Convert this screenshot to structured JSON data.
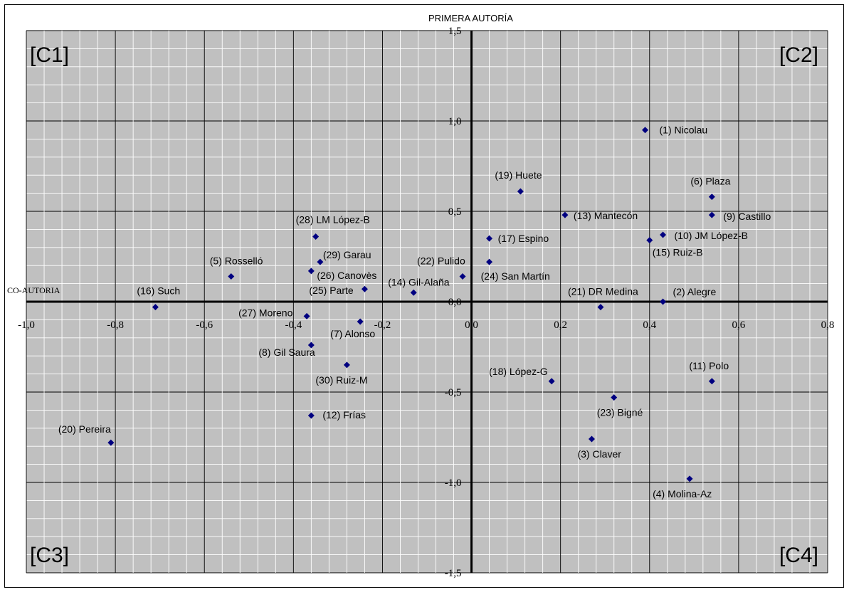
{
  "chart_data": {
    "type": "scatter",
    "title": "",
    "xlabel": "CO-AUTORIA",
    "ylabel": "PRIMERA AUTORÍA",
    "xlim": [
      -1.0,
      0.8
    ],
    "ylim": [
      -1.5,
      1.5
    ],
    "grid": true,
    "x_ticks": [
      "-1,0",
      "-0,8",
      "-0,6",
      "-0,4",
      "-0,2",
      "0,0",
      "0,2",
      "0,4",
      "0,6",
      "0,8"
    ],
    "y_ticks": [
      "1,5",
      "1,0",
      "0,5",
      "0,0",
      "-0,5",
      "-1,0",
      "-1,5"
    ],
    "quadrants": [
      "[C1]",
      "[C2]",
      "[C3]",
      "[C4]"
    ],
    "marker_color": "#000080",
    "points": [
      {
        "label": "(1) Nicolau",
        "x": 0.39,
        "y": 0.95
      },
      {
        "label": "(2) Alegre",
        "x": 0.43,
        "y": 0.0
      },
      {
        "label": "(3) Claver",
        "x": 0.27,
        "y": -0.76
      },
      {
        "label": "(4) Molina-Az",
        "x": 0.49,
        "y": -0.98
      },
      {
        "label": "(5) Rosselló",
        "x": -0.54,
        "y": 0.14
      },
      {
        "label": "(6) Plaza",
        "x": 0.54,
        "y": 0.58
      },
      {
        "label": "(7) Alonso",
        "x": -0.25,
        "y": -0.11
      },
      {
        "label": "(8) Gil Saura",
        "x": -0.36,
        "y": -0.24
      },
      {
        "label": "(9) Castillo",
        "x": 0.54,
        "y": 0.48
      },
      {
        "label": "(10) JM López-B",
        "x": 0.43,
        "y": 0.37
      },
      {
        "label": "(11) Polo",
        "x": 0.54,
        "y": -0.44
      },
      {
        "label": "(12) Frías",
        "x": -0.36,
        "y": -0.63
      },
      {
        "label": "(13) Mantecón",
        "x": 0.21,
        "y": 0.48
      },
      {
        "label": "(14) Gil-Alaña",
        "x": -0.13,
        "y": 0.05
      },
      {
        "label": "(15) Ruiz-B",
        "x": 0.4,
        "y": 0.34
      },
      {
        "label": "(16) Such",
        "x": -0.71,
        "y": -0.03
      },
      {
        "label": "(17) Espino",
        "x": 0.04,
        "y": 0.35
      },
      {
        "label": "(18) López-G",
        "x": 0.18,
        "y": -0.44
      },
      {
        "label": "(19) Huete",
        "x": 0.11,
        "y": 0.61
      },
      {
        "label": "(20) Pereira",
        "x": -0.81,
        "y": -0.78
      },
      {
        "label": "(21) DR Medina",
        "x": 0.29,
        "y": -0.03
      },
      {
        "label": "(22) Pulido",
        "x": -0.02,
        "y": 0.14
      },
      {
        "label": "(23) Bigné",
        "x": 0.32,
        "y": -0.53
      },
      {
        "label": "(24) San Martín",
        "x": 0.04,
        "y": 0.22
      },
      {
        "label": "(25) Parte",
        "x": -0.24,
        "y": 0.07
      },
      {
        "label": "(26) Canovès",
        "x": -0.36,
        "y": 0.17
      },
      {
        "label": "(27) Moreno",
        "x": -0.37,
        "y": -0.08
      },
      {
        "label": "(28) LM López-B",
        "x": -0.35,
        "y": 0.36
      },
      {
        "label": "(29) Garau",
        "x": -0.34,
        "y": 0.22
      },
      {
        "label": "(30) Ruiz-M",
        "x": -0.28,
        "y": -0.35
      }
    ]
  }
}
